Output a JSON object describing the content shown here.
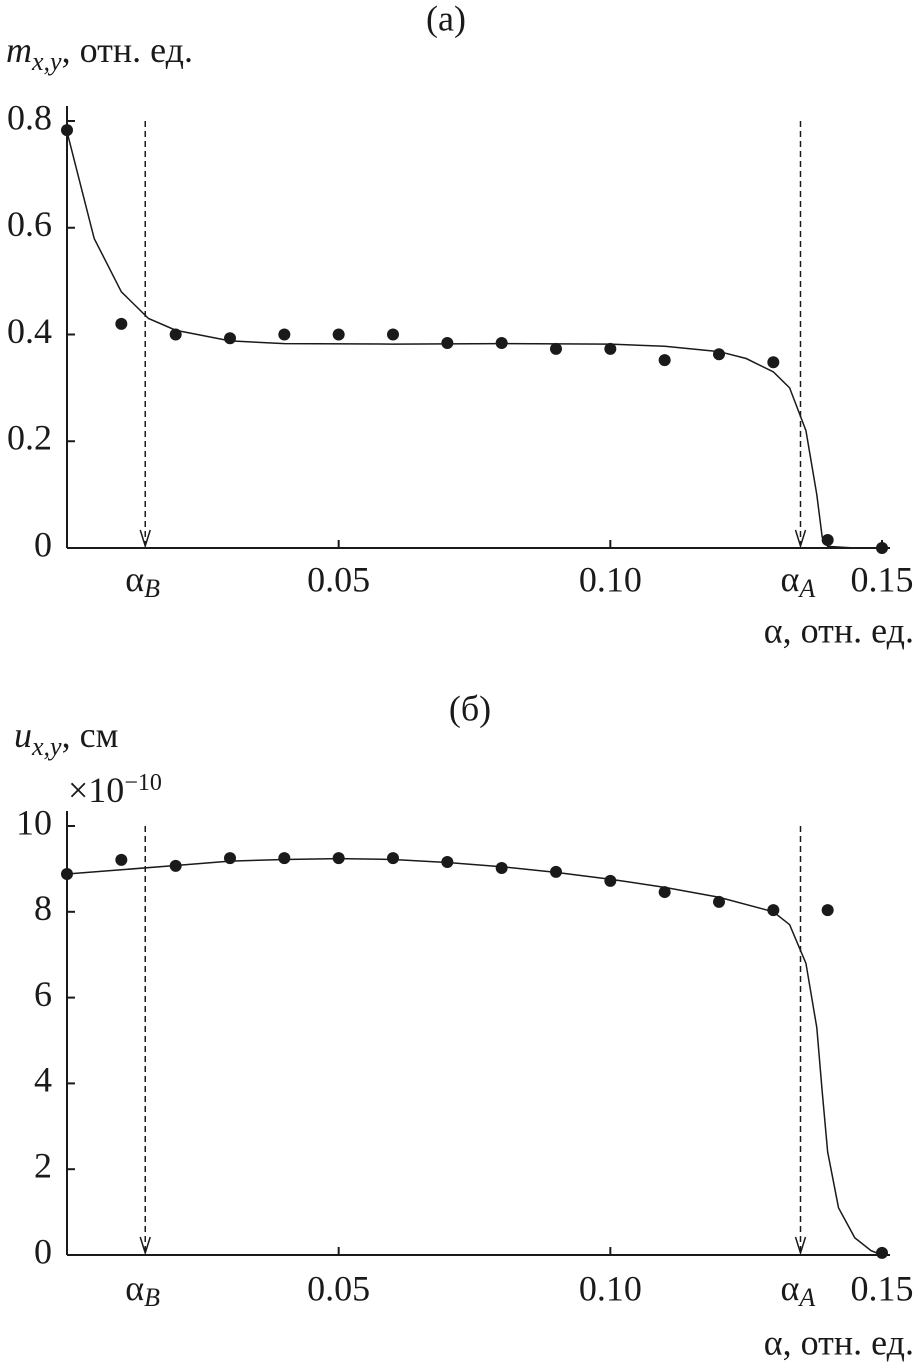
{
  "chart_data": [
    {
      "type": "scatter",
      "title": "(а)",
      "ylabel_symbol": "m",
      "ylabel_subscript": "x,y",
      "ylabel_rest": ", отн. ед.",
      "xlabel": "α, отн. ед.",
      "xlim": [
        0,
        0.15
      ],
      "xticks": [
        0.05,
        {
          "value": 0.1,
          "label": "0.10"
        },
        0.15
      ],
      "ylim": [
        0,
        0.8
      ],
      "yticks": [
        0,
        0.2,
        0.4,
        0.6,
        0.8
      ],
      "color": "#1a1a1a",
      "markers": [
        {
          "x": 0.0144,
          "symbol": "α",
          "subscript": "B"
        },
        {
          "x": 0.135,
          "symbol": "α",
          "subscript": "A"
        }
      ],
      "points": {
        "x": [
          0,
          0.01,
          0.02,
          0.03,
          0.04,
          0.05,
          0.06,
          0.07,
          0.08,
          0.09,
          0.1,
          0.11,
          0.12,
          0.13,
          0.14,
          0.15
        ],
        "y": [
          0.783,
          0.42,
          0.4,
          0.393,
          0.4,
          0.4,
          0.4,
          0.384,
          0.384,
          0.373,
          0.373,
          0.352,
          0.363,
          0.348,
          0.015,
          0
        ]
      },
      "fit": {
        "x": [
          0,
          0.005,
          0.01,
          0.015,
          0.02,
          0.03,
          0.04,
          0.06,
          0.08,
          0.1,
          0.11,
          0.12,
          0.125,
          0.13,
          0.133,
          0.136,
          0.138,
          0.139,
          0.14,
          0.145,
          0.15
        ],
        "y": [
          0.78,
          0.58,
          0.48,
          0.43,
          0.408,
          0.388,
          0.383,
          0.382,
          0.383,
          0.382,
          0.378,
          0.368,
          0.355,
          0.33,
          0.3,
          0.22,
          0.1,
          0.02,
          0.003,
          0,
          0
        ]
      }
    },
    {
      "type": "scatter",
      "title": "(б)",
      "ylabel_symbol": "u",
      "ylabel_subscript": "x,y",
      "ylabel_rest": ", см",
      "multiplier": "×10",
      "multiplier_exp": "−10",
      "xlabel": "α, отн. ед.",
      "xlim": [
        0,
        0.15
      ],
      "xticks": [
        0.05,
        {
          "value": 0.1,
          "label": "0.10"
        },
        0.15
      ],
      "ylim": [
        0,
        10
      ],
      "yticks": [
        0,
        2,
        4,
        6,
        8,
        10
      ],
      "color": "#1a1a1a",
      "markers": [
        {
          "x": 0.0144,
          "symbol": "α",
          "subscript": "B"
        },
        {
          "x": 0.135,
          "symbol": "α",
          "subscript": "A"
        }
      ],
      "points": {
        "x": [
          0,
          0.01,
          0.02,
          0.03,
          0.04,
          0.05,
          0.06,
          0.07,
          0.08,
          0.09,
          0.1,
          0.11,
          0.12,
          0.13,
          0.14,
          0.15
        ],
        "y": [
          8.88,
          9.21,
          9.07,
          9.25,
          9.25,
          9.25,
          9.25,
          9.16,
          9.02,
          8.93,
          8.72,
          8.46,
          8.23,
          8.04,
          8.04,
          0.05
        ]
      },
      "fit": {
        "x": [
          0,
          0.01,
          0.02,
          0.03,
          0.04,
          0.05,
          0.06,
          0.07,
          0.08,
          0.09,
          0.1,
          0.11,
          0.12,
          0.13,
          0.133,
          0.136,
          0.138,
          0.139,
          0.14,
          0.142,
          0.145,
          0.148,
          0.15
        ],
        "y": [
          8.88,
          8.98,
          9.08,
          9.18,
          9.22,
          9.24,
          9.22,
          9.15,
          9.05,
          8.92,
          8.76,
          8.57,
          8.34,
          8.0,
          7.7,
          6.8,
          5.3,
          3.8,
          2.4,
          1.1,
          0.4,
          0.1,
          0
        ]
      }
    }
  ]
}
